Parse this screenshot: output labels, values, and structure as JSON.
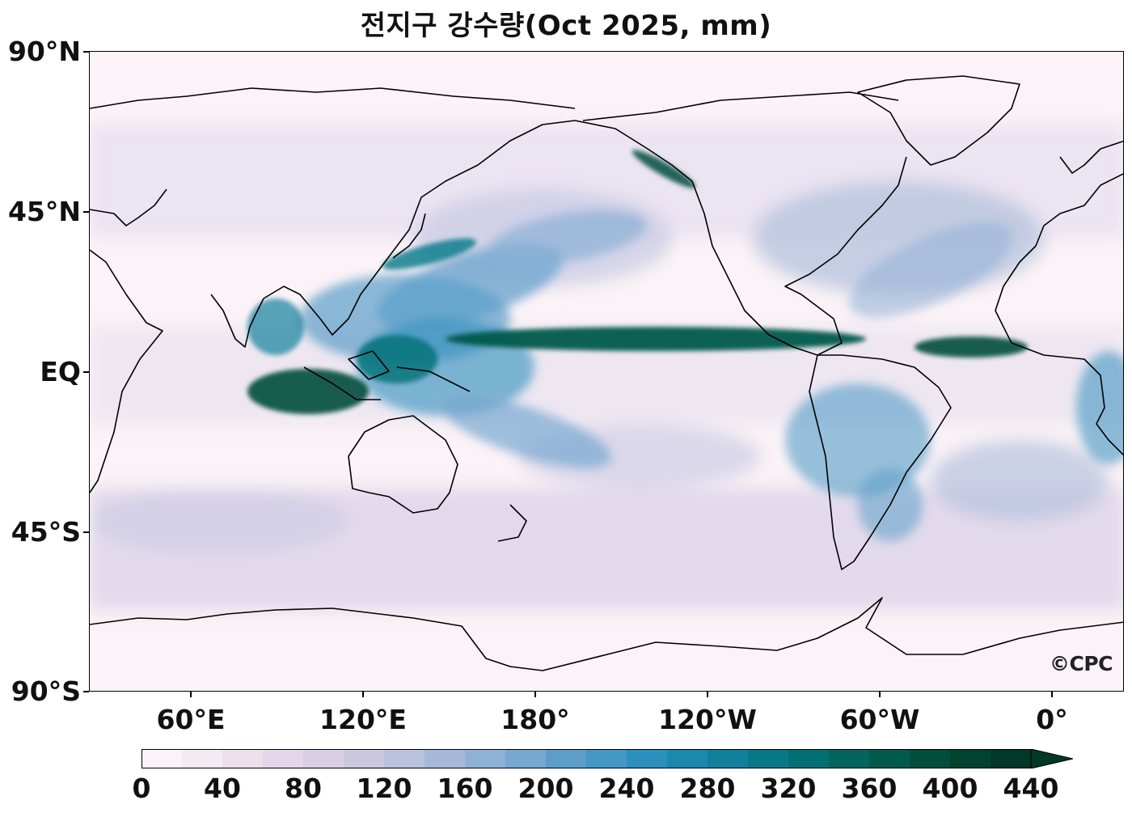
{
  "title": "전지구 강수량(Oct 2025, mm)",
  "credit": "©CPC",
  "lat_labels": [
    "90°N",
    "45°N",
    "EQ",
    "45°S",
    "90°S"
  ],
  "lon_labels": [
    "60°E",
    "120°E",
    "180°",
    "120°W",
    "60°W",
    "0°"
  ],
  "colorbar": {
    "ticks": [
      "0",
      "40",
      "80",
      "120",
      "160",
      "200",
      "240",
      "280",
      "320",
      "360",
      "400",
      "440"
    ],
    "min": 0,
    "max": 440,
    "step": 20,
    "extend": "max",
    "colors": [
      "#fbf3f7",
      "#f4eaf2",
      "#ece0ec",
      "#e3d6e8",
      "#d8cfe4",
      "#ccc8e0",
      "#bac2de",
      "#a6b9da",
      "#8fb1d6",
      "#76a8d0",
      "#5c9ec9",
      "#4496c3",
      "#2d8fbd",
      "#1b88ae",
      "#10809c",
      "#087888",
      "#036f74",
      "#026560",
      "#025a4c",
      "#024e3c",
      "#01432f",
      "#013827"
    ]
  },
  "colors": {
    "coastline": "#000000",
    "frame": "#000000"
  }
}
